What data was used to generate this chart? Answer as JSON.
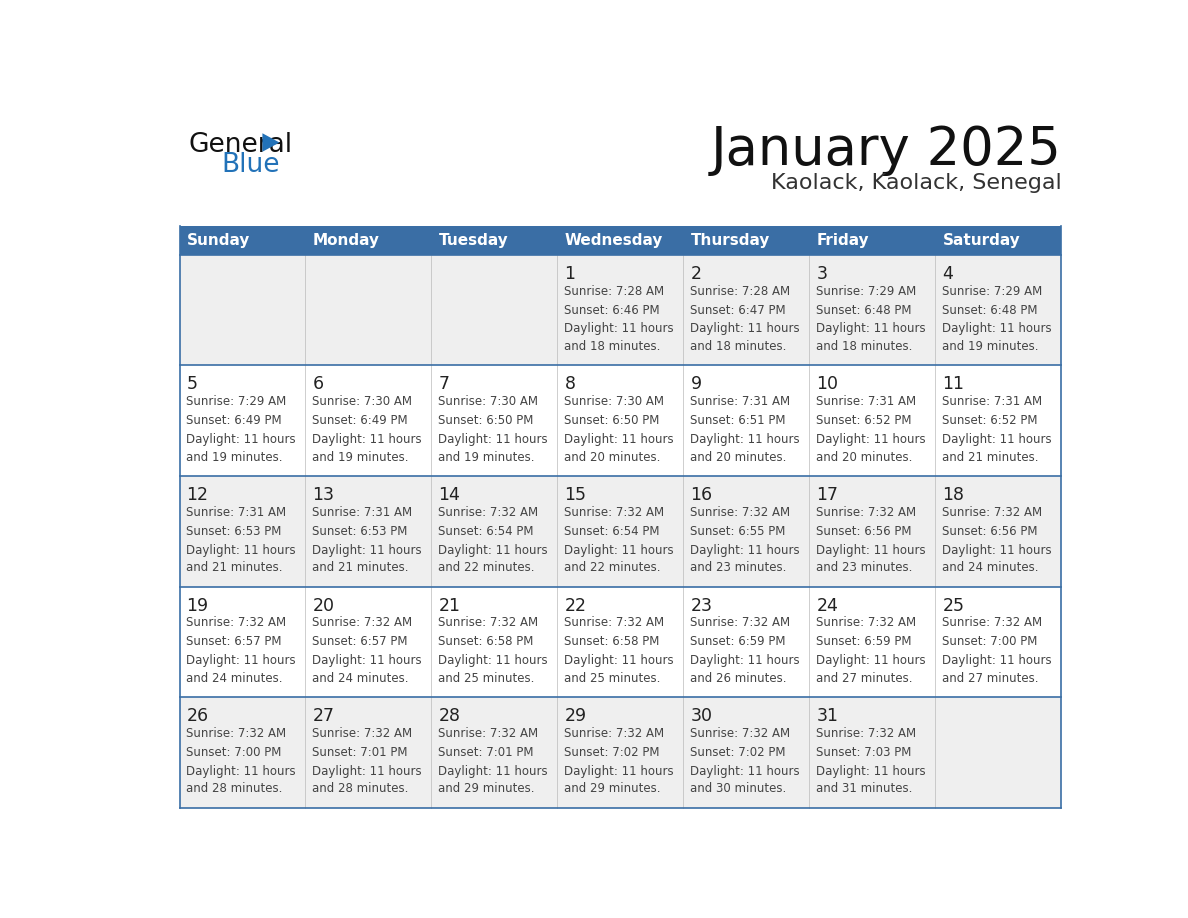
{
  "title": "January 2025",
  "subtitle": "Kaolack, Kaolack, Senegal",
  "days_of_week": [
    "Sunday",
    "Monday",
    "Tuesday",
    "Wednesday",
    "Thursday",
    "Friday",
    "Saturday"
  ],
  "header_bg": "#3a6ea5",
  "header_text": "#ffffff",
  "row_bg_odd": "#efefef",
  "row_bg_even": "#ffffff",
  "cell_border_color": "#3a6ea5",
  "row_divider_color": "#3a6ea5",
  "day_num_color": "#222222",
  "text_color": "#444444",
  "title_color": "#111111",
  "subtitle_color": "#333333",
  "logo_general_color": "#111111",
  "logo_blue_color": "#2272b8",
  "calendar_data": [
    [
      {
        "day": null,
        "sunrise": null,
        "sunset": null,
        "daylight_line1": null,
        "daylight_line2": null
      },
      {
        "day": null,
        "sunrise": null,
        "sunset": null,
        "daylight_line1": null,
        "daylight_line2": null
      },
      {
        "day": null,
        "sunrise": null,
        "sunset": null,
        "daylight_line1": null,
        "daylight_line2": null
      },
      {
        "day": "1",
        "sunrise": "Sunrise: 7:28 AM",
        "sunset": "Sunset: 6:46 PM",
        "daylight_line1": "Daylight: 11 hours",
        "daylight_line2": "and 18 minutes."
      },
      {
        "day": "2",
        "sunrise": "Sunrise: 7:28 AM",
        "sunset": "Sunset: 6:47 PM",
        "daylight_line1": "Daylight: 11 hours",
        "daylight_line2": "and 18 minutes."
      },
      {
        "day": "3",
        "sunrise": "Sunrise: 7:29 AM",
        "sunset": "Sunset: 6:48 PM",
        "daylight_line1": "Daylight: 11 hours",
        "daylight_line2": "and 18 minutes."
      },
      {
        "day": "4",
        "sunrise": "Sunrise: 7:29 AM",
        "sunset": "Sunset: 6:48 PM",
        "daylight_line1": "Daylight: 11 hours",
        "daylight_line2": "and 19 minutes."
      }
    ],
    [
      {
        "day": "5",
        "sunrise": "Sunrise: 7:29 AM",
        "sunset": "Sunset: 6:49 PM",
        "daylight_line1": "Daylight: 11 hours",
        "daylight_line2": "and 19 minutes."
      },
      {
        "day": "6",
        "sunrise": "Sunrise: 7:30 AM",
        "sunset": "Sunset: 6:49 PM",
        "daylight_line1": "Daylight: 11 hours",
        "daylight_line2": "and 19 minutes."
      },
      {
        "day": "7",
        "sunrise": "Sunrise: 7:30 AM",
        "sunset": "Sunset: 6:50 PM",
        "daylight_line1": "Daylight: 11 hours",
        "daylight_line2": "and 19 minutes."
      },
      {
        "day": "8",
        "sunrise": "Sunrise: 7:30 AM",
        "sunset": "Sunset: 6:50 PM",
        "daylight_line1": "Daylight: 11 hours",
        "daylight_line2": "and 20 minutes."
      },
      {
        "day": "9",
        "sunrise": "Sunrise: 7:31 AM",
        "sunset": "Sunset: 6:51 PM",
        "daylight_line1": "Daylight: 11 hours",
        "daylight_line2": "and 20 minutes."
      },
      {
        "day": "10",
        "sunrise": "Sunrise: 7:31 AM",
        "sunset": "Sunset: 6:52 PM",
        "daylight_line1": "Daylight: 11 hours",
        "daylight_line2": "and 20 minutes."
      },
      {
        "day": "11",
        "sunrise": "Sunrise: 7:31 AM",
        "sunset": "Sunset: 6:52 PM",
        "daylight_line1": "Daylight: 11 hours",
        "daylight_line2": "and 21 minutes."
      }
    ],
    [
      {
        "day": "12",
        "sunrise": "Sunrise: 7:31 AM",
        "sunset": "Sunset: 6:53 PM",
        "daylight_line1": "Daylight: 11 hours",
        "daylight_line2": "and 21 minutes."
      },
      {
        "day": "13",
        "sunrise": "Sunrise: 7:31 AM",
        "sunset": "Sunset: 6:53 PM",
        "daylight_line1": "Daylight: 11 hours",
        "daylight_line2": "and 21 minutes."
      },
      {
        "day": "14",
        "sunrise": "Sunrise: 7:32 AM",
        "sunset": "Sunset: 6:54 PM",
        "daylight_line1": "Daylight: 11 hours",
        "daylight_line2": "and 22 minutes."
      },
      {
        "day": "15",
        "sunrise": "Sunrise: 7:32 AM",
        "sunset": "Sunset: 6:54 PM",
        "daylight_line1": "Daylight: 11 hours",
        "daylight_line2": "and 22 minutes."
      },
      {
        "day": "16",
        "sunrise": "Sunrise: 7:32 AM",
        "sunset": "Sunset: 6:55 PM",
        "daylight_line1": "Daylight: 11 hours",
        "daylight_line2": "and 23 minutes."
      },
      {
        "day": "17",
        "sunrise": "Sunrise: 7:32 AM",
        "sunset": "Sunset: 6:56 PM",
        "daylight_line1": "Daylight: 11 hours",
        "daylight_line2": "and 23 minutes."
      },
      {
        "day": "18",
        "sunrise": "Sunrise: 7:32 AM",
        "sunset": "Sunset: 6:56 PM",
        "daylight_line1": "Daylight: 11 hours",
        "daylight_line2": "and 24 minutes."
      }
    ],
    [
      {
        "day": "19",
        "sunrise": "Sunrise: 7:32 AM",
        "sunset": "Sunset: 6:57 PM",
        "daylight_line1": "Daylight: 11 hours",
        "daylight_line2": "and 24 minutes."
      },
      {
        "day": "20",
        "sunrise": "Sunrise: 7:32 AM",
        "sunset": "Sunset: 6:57 PM",
        "daylight_line1": "Daylight: 11 hours",
        "daylight_line2": "and 24 minutes."
      },
      {
        "day": "21",
        "sunrise": "Sunrise: 7:32 AM",
        "sunset": "Sunset: 6:58 PM",
        "daylight_line1": "Daylight: 11 hours",
        "daylight_line2": "and 25 minutes."
      },
      {
        "day": "22",
        "sunrise": "Sunrise: 7:32 AM",
        "sunset": "Sunset: 6:58 PM",
        "daylight_line1": "Daylight: 11 hours",
        "daylight_line2": "and 25 minutes."
      },
      {
        "day": "23",
        "sunrise": "Sunrise: 7:32 AM",
        "sunset": "Sunset: 6:59 PM",
        "daylight_line1": "Daylight: 11 hours",
        "daylight_line2": "and 26 minutes."
      },
      {
        "day": "24",
        "sunrise": "Sunrise: 7:32 AM",
        "sunset": "Sunset: 6:59 PM",
        "daylight_line1": "Daylight: 11 hours",
        "daylight_line2": "and 27 minutes."
      },
      {
        "day": "25",
        "sunrise": "Sunrise: 7:32 AM",
        "sunset": "Sunset: 7:00 PM",
        "daylight_line1": "Daylight: 11 hours",
        "daylight_line2": "and 27 minutes."
      }
    ],
    [
      {
        "day": "26",
        "sunrise": "Sunrise: 7:32 AM",
        "sunset": "Sunset: 7:00 PM",
        "daylight_line1": "Daylight: 11 hours",
        "daylight_line2": "and 28 minutes."
      },
      {
        "day": "27",
        "sunrise": "Sunrise: 7:32 AM",
        "sunset": "Sunset: 7:01 PM",
        "daylight_line1": "Daylight: 11 hours",
        "daylight_line2": "and 28 minutes."
      },
      {
        "day": "28",
        "sunrise": "Sunrise: 7:32 AM",
        "sunset": "Sunset: 7:01 PM",
        "daylight_line1": "Daylight: 11 hours",
        "daylight_line2": "and 29 minutes."
      },
      {
        "day": "29",
        "sunrise": "Sunrise: 7:32 AM",
        "sunset": "Sunset: 7:02 PM",
        "daylight_line1": "Daylight: 11 hours",
        "daylight_line2": "and 29 minutes."
      },
      {
        "day": "30",
        "sunrise": "Sunrise: 7:32 AM",
        "sunset": "Sunset: 7:02 PM",
        "daylight_line1": "Daylight: 11 hours",
        "daylight_line2": "and 30 minutes."
      },
      {
        "day": "31",
        "sunrise": "Sunrise: 7:32 AM",
        "sunset": "Sunset: 7:03 PM",
        "daylight_line1": "Daylight: 11 hours",
        "daylight_line2": "and 31 minutes."
      },
      {
        "day": null,
        "sunrise": null,
        "sunset": null,
        "daylight_line1": null,
        "daylight_line2": null
      }
    ]
  ]
}
